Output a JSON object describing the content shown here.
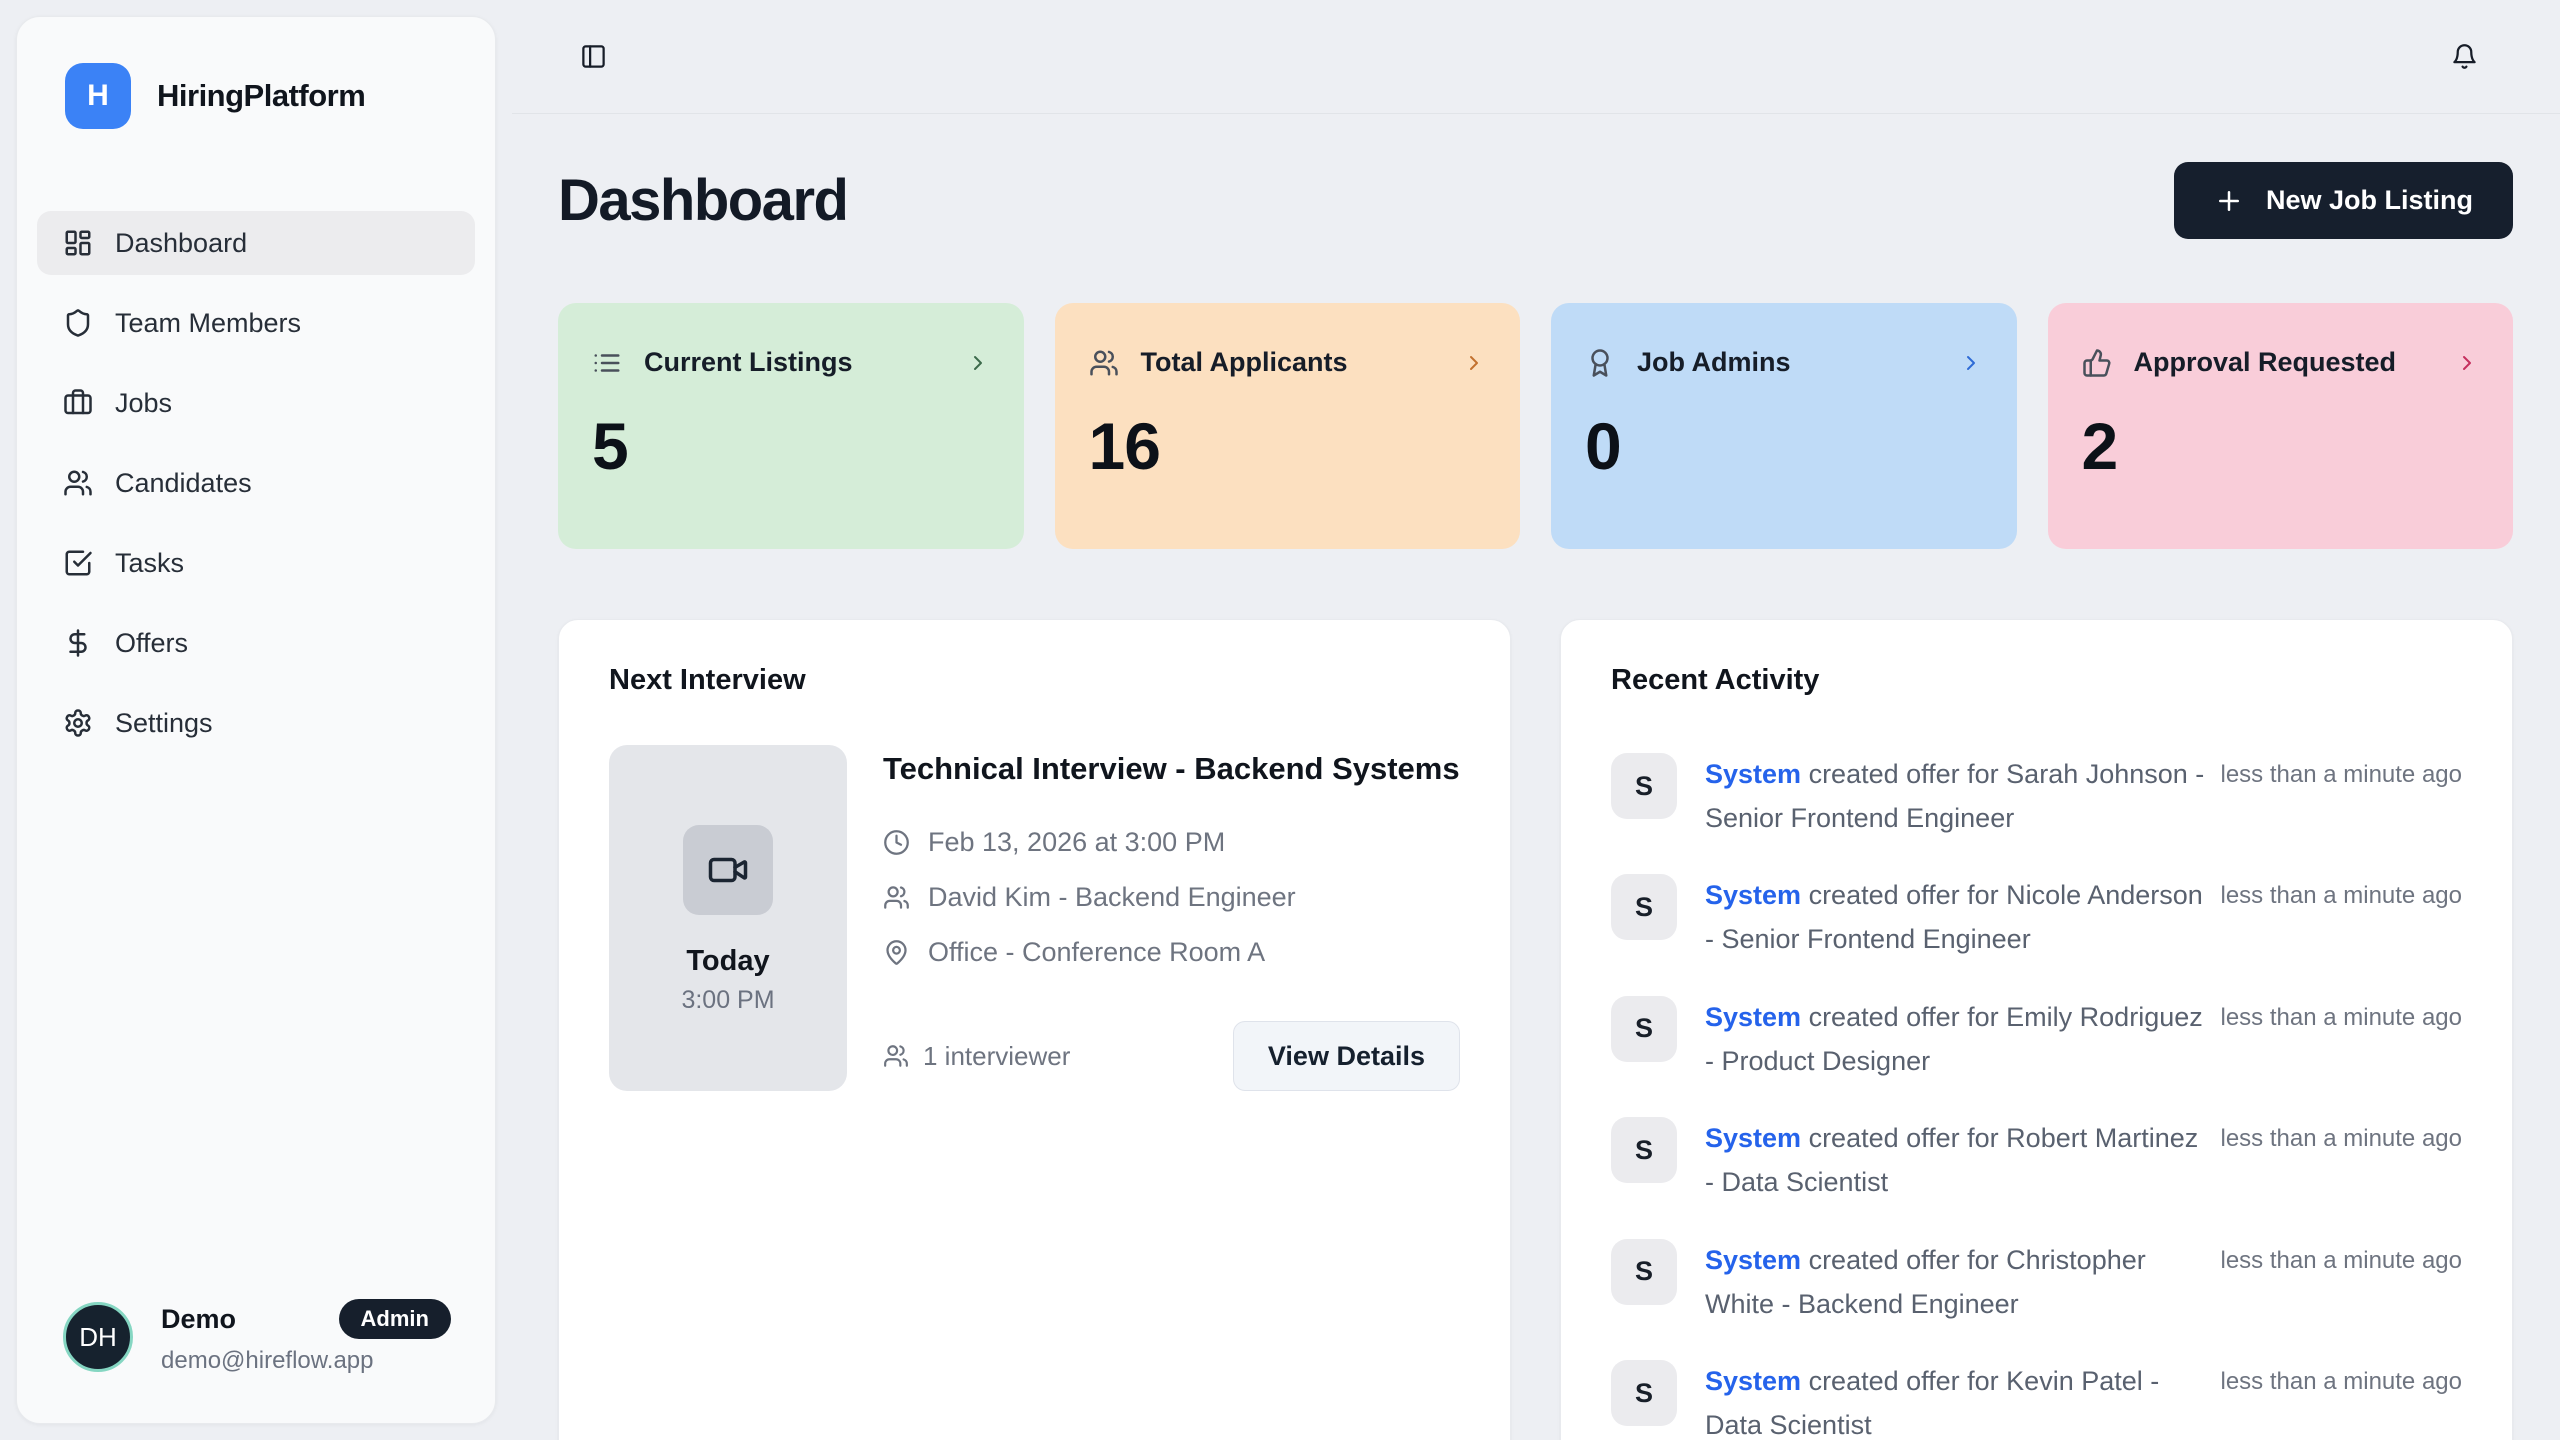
{
  "app": {
    "name": "HiringPlatform",
    "logo_letter": "H"
  },
  "topbar": {
    "sidebar_toggle_icon": "panel-left-icon",
    "notifications_icon": "bell-icon"
  },
  "sidebar": {
    "items": [
      {
        "label": "Dashboard",
        "icon": "dashboard-grid-icon",
        "active": true
      },
      {
        "label": "Team Members",
        "icon": "shield-icon",
        "active": false
      },
      {
        "label": "Jobs",
        "icon": "briefcase-icon",
        "active": false
      },
      {
        "label": "Candidates",
        "icon": "users-icon",
        "active": false
      },
      {
        "label": "Tasks",
        "icon": "check-square-icon",
        "active": false
      },
      {
        "label": "Offers",
        "icon": "dollar-icon",
        "active": false
      },
      {
        "label": "Settings",
        "icon": "gear-icon",
        "active": false
      }
    ],
    "user": {
      "initials": "DH",
      "name": "Demo",
      "role_badge": "Admin",
      "email": "demo@hireflow.app"
    }
  },
  "main": {
    "title": "Dashboard",
    "new_job_button": {
      "label": "New Job Listing",
      "icon": "plus-icon"
    },
    "stats": [
      {
        "label": "Current Listings",
        "value": "5",
        "icon": "list-icon",
        "bg": "#d5edd8",
        "chevron_color": "#3c6a4b"
      },
      {
        "label": "Total Applicants",
        "value": "16",
        "icon": "users-icon",
        "bg": "#fce0c0",
        "chevron_color": "#c2712f"
      },
      {
        "label": "Job Admins",
        "value": "0",
        "icon": "award-icon",
        "bg": "#bfdbf7",
        "chevron_color": "#2e6bd6"
      },
      {
        "label": "Approval Requested",
        "value": "2",
        "icon": "thumbs-up-icon",
        "bg": "#f9cdd9",
        "chevron_color": "#c52f5e"
      }
    ],
    "next_interview": {
      "section_title": "Next Interview",
      "title": "Technical Interview - Backend Systems",
      "datetime": "Feb 13, 2026 at 3:00 PM",
      "person": "David Kim - Backend Engineer",
      "location": "Office - Conference Room A",
      "day_label": "Today",
      "time_label": "3:00 PM",
      "interviewer_count": "1 interviewer",
      "view_details_label": "View Details"
    },
    "recent_activity": {
      "section_title": "Recent Activity",
      "items": [
        {
          "actor": "System",
          "avatar_letter": "S",
          "action": "created offer for Sarah Johnson - Senior Frontend Engineer",
          "timestamp": "less than a minute ago"
        },
        {
          "actor": "System",
          "avatar_letter": "S",
          "action": "created offer for Nicole Anderson - Senior Frontend Engineer",
          "timestamp": "less than a minute ago"
        },
        {
          "actor": "System",
          "avatar_letter": "S",
          "action": "created offer for Emily Rodriguez - Product Designer",
          "timestamp": "less than a minute ago"
        },
        {
          "actor": "System",
          "avatar_letter": "S",
          "action": "created offer for Robert Martinez - Data Scientist",
          "timestamp": "less than a minute ago"
        },
        {
          "actor": "System",
          "avatar_letter": "S",
          "action": "created offer for Christopher White - Backend Engineer",
          "timestamp": "less than a minute ago"
        },
        {
          "actor": "System",
          "avatar_letter": "S",
          "action": "created offer for Kevin Patel - Data Scientist",
          "timestamp": "less than a minute ago"
        }
      ]
    }
  },
  "colors": {
    "accent_blue": "#3b82f6",
    "dark_navy": "#161f2d",
    "link_blue": "#2563eb",
    "page_bg": "#edeff3"
  }
}
